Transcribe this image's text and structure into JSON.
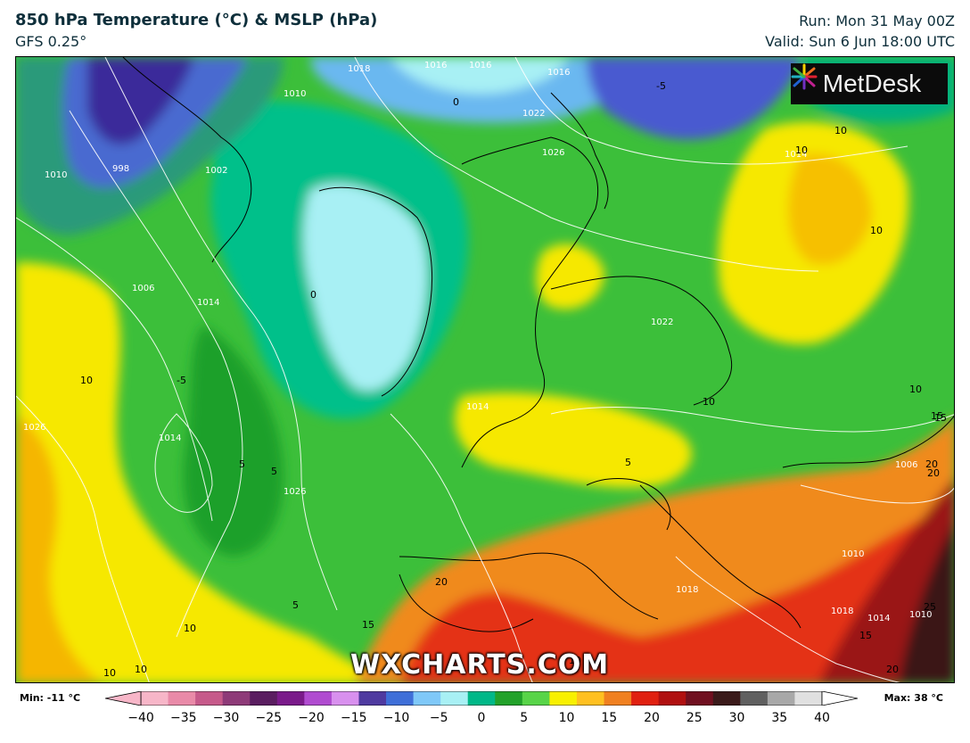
{
  "header": {
    "title": "850 hPa Temperature (°C) & MSLP (hPa)",
    "model": "GFS 0.25°",
    "run": "Run: Mon 31 May 00Z",
    "valid": "Valid: Sun 6 Jun 18:00 UTC"
  },
  "branding": {
    "logo_text": "MetDesk",
    "watermark": "WXCHARTS.COM"
  },
  "colorbar": {
    "min_label": "Min: -11 °C",
    "max_label": "Max: 38 °C",
    "ticks": [
      "−40",
      "−35",
      "−30",
      "−25",
      "−20",
      "−15",
      "−10",
      "−5",
      "0",
      "5",
      "10",
      "15",
      "20",
      "25",
      "30",
      "35",
      "40"
    ],
    "colors": [
      "#f7b6c8",
      "#e98aa8",
      "#c65a8a",
      "#8e3a78",
      "#5a1d60",
      "#7a1a8a",
      "#b04bd0",
      "#d890ee",
      "#4f3aa0",
      "#3f6fd8",
      "#7fc8f8",
      "#a8f0f4",
      "#00b888",
      "#22a22a",
      "#58d448",
      "#f8f000",
      "#ffc020",
      "#f08020",
      "#e02010",
      "#b01010",
      "#701020",
      "#3a1a1a",
      "#606060",
      "#a8a8a8",
      "#e0e0e0"
    ]
  },
  "map": {
    "isobar_labels": [
      "1018",
      "1016",
      "1016",
      "1016",
      "1010",
      "1010",
      "998",
      "1002",
      "1022",
      "1026",
      "1006",
      "1014",
      "1026",
      "1014",
      "1026",
      "1014",
      "1022",
      "1014",
      "1006",
      "1010",
      "1018",
      "1018",
      "1014",
      "1010"
    ],
    "temperature_labels": [
      "-5",
      "0",
      "0",
      "-5",
      "10",
      "10",
      "10",
      "10",
      "5",
      "5",
      "5",
      "5",
      "10",
      "10",
      "10",
      "15",
      "20",
      "10",
      "10",
      "15",
      "20",
      "15",
      "20",
      "25",
      "15",
      "10",
      "20"
    ]
  }
}
